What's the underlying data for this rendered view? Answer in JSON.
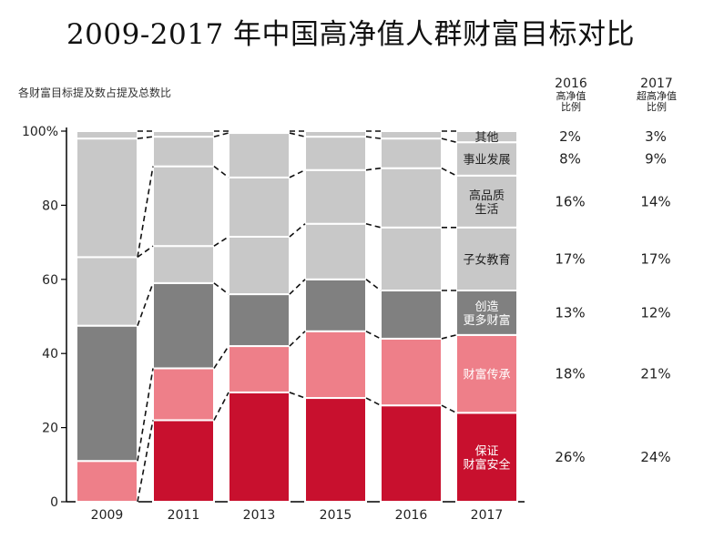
{
  "title": "2009-2017 年中国高净值人群财富目标对比",
  "subtitle": "各财富目标提及数占提及总数比",
  "columns": [
    {
      "year": "2016",
      "lines": [
        "高净值",
        "比例"
      ]
    },
    {
      "year": "2017",
      "lines": [
        "超高净值",
        "比例"
      ]
    }
  ],
  "chart_data": {
    "type": "bar",
    "stacked": true,
    "ylim": [
      0,
      100
    ],
    "y_ticks": [
      "0",
      "20",
      "40",
      "60",
      "80",
      "100%"
    ],
    "categories": [
      "2009",
      "2011",
      "2013",
      "2015",
      "2016",
      "2017"
    ],
    "series": [
      {
        "name": "保证财富安全",
        "values": [
          0,
          22,
          29.5,
          28,
          26,
          24
        ],
        "color": "#c8102e"
      },
      {
        "name": "财富传承",
        "values": [
          11,
          14,
          12.5,
          18,
          18,
          21
        ],
        "color": "#ee7f89"
      },
      {
        "name": "创造更多财富",
        "values": [
          36.5,
          23,
          14,
          14,
          13,
          12
        ],
        "color": "#808080"
      },
      {
        "name": "子女教育",
        "values": [
          18.5,
          10,
          15.5,
          15,
          17,
          17
        ],
        "color": "#c8c8c8"
      },
      {
        "name": "高品质生活",
        "values": [
          0,
          21.5,
          16,
          14.5,
          16,
          14
        ],
        "color": "#c8c8c8"
      },
      {
        "name": "事业发展",
        "values": [
          32,
          8,
          12,
          9,
          8,
          9
        ],
        "color": "#c8c8c8"
      },
      {
        "name": "其他",
        "values": [
          2,
          1.5,
          0.5,
          1.5,
          2,
          3
        ],
        "color": "#c8c8c8"
      }
    ],
    "category_labels": [
      {
        "lines": [
          "保证",
          "财富安全"
        ]
      },
      {
        "lines": [
          "财富传承"
        ]
      },
      {
        "lines": [
          "创造",
          "更多财富"
        ]
      },
      {
        "lines": [
          "子女教育"
        ]
      },
      {
        "lines": [
          "高品质",
          "生活"
        ]
      },
      {
        "lines": [
          "事业发展"
        ]
      },
      {
        "lines": [
          "其他"
        ]
      }
    ],
    "pct_2016": [
      "26%",
      "18%",
      "13%",
      "17%",
      "16%",
      "8%",
      "2%"
    ],
    "pct_2017": [
      "24%",
      "21%",
      "12%",
      "17%",
      "14%",
      "9%",
      "3%"
    ],
    "grid": false,
    "legend": "inline-right"
  }
}
